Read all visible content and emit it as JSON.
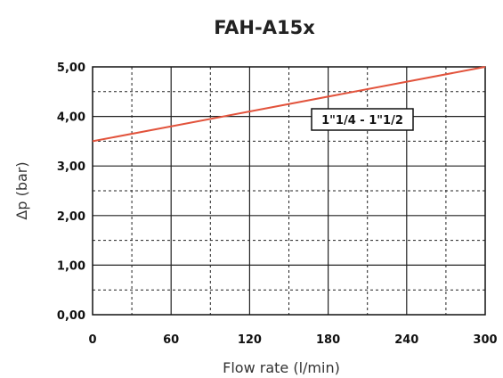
{
  "chart_data": {
    "type": "line",
    "title": "FAH-A15x",
    "xlabel": "Flow rate (l/min)",
    "ylabel": "Δp (bar)",
    "xlim": [
      0,
      300
    ],
    "ylim": [
      0,
      5
    ],
    "x_ticks": [
      "0",
      "60",
      "120",
      "180",
      "240",
      "300"
    ],
    "x_tick_values": [
      0,
      60,
      120,
      180,
      240,
      300
    ],
    "y_ticks": [
      "0,00",
      "1,00",
      "2,00",
      "3,00",
      "4,00",
      "5,00"
    ],
    "y_tick_values": [
      0,
      1,
      2,
      3,
      4,
      5
    ],
    "grid": true,
    "series": [
      {
        "name": "1\"1/4 - 1\"1/2",
        "color": "#e2533c",
        "x": [
          0,
          300
        ],
        "y": [
          3.5,
          5.0
        ]
      }
    ],
    "annotation": "1\"1/4 - 1\"1/2"
  }
}
